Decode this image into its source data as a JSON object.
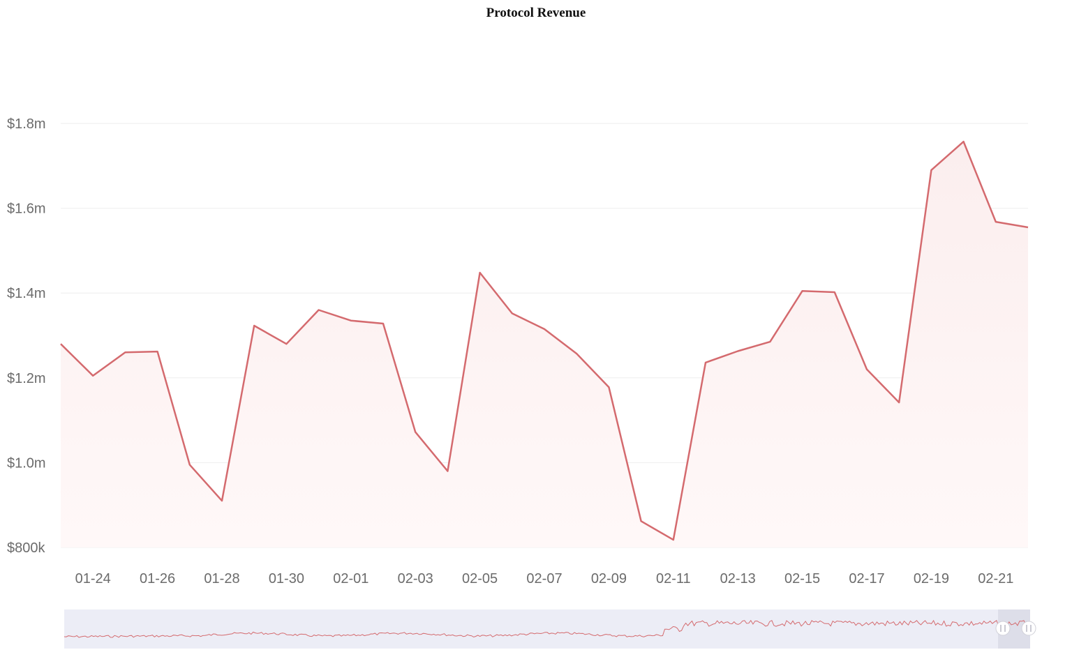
{
  "chart_data": {
    "type": "area",
    "title": "Protocol Revenue",
    "xlabel": "",
    "ylabel": "",
    "ylim": [
      800000,
      1800000
    ],
    "y_ticks": [
      {
        "value": 800000,
        "label": "$800k"
      },
      {
        "value": 1000000,
        "label": "$1.0m"
      },
      {
        "value": 1200000,
        "label": "$1.2m"
      },
      {
        "value": 1400000,
        "label": "$1.4m"
      },
      {
        "value": 1600000,
        "label": "$1.6m"
      },
      {
        "value": 1800000,
        "label": "$1.8m"
      }
    ],
    "x_tick_labels": [
      "01-24",
      "01-26",
      "01-28",
      "01-30",
      "02-01",
      "02-03",
      "02-05",
      "02-07",
      "02-09",
      "02-11",
      "02-13",
      "02-15",
      "02-17",
      "02-19",
      "02-21"
    ],
    "x": [
      "01-23",
      "01-24",
      "01-25",
      "01-26",
      "01-27",
      "01-28",
      "01-29",
      "01-30",
      "01-31",
      "02-01",
      "02-02",
      "02-03",
      "02-04",
      "02-05",
      "02-06",
      "02-07",
      "02-08",
      "02-09",
      "02-10",
      "02-11",
      "02-12",
      "02-13",
      "02-14",
      "02-15",
      "02-16",
      "02-17",
      "02-18",
      "02-19",
      "02-20",
      "02-21",
      "02-22"
    ],
    "series": [
      {
        "values": [
          1280000,
          1205000,
          1260000,
          1262000,
          995000,
          910000,
          1323000,
          1280000,
          1360000,
          1335000,
          1328000,
          1072000,
          980000,
          1448000,
          1352000,
          1315000,
          1257000,
          1178000,
          862000,
          818000,
          1236000,
          1263000,
          1285000,
          1405000,
          1402000,
          1220000,
          1142000,
          1690000,
          1757000,
          1568000,
          1555000
        ]
      }
    ],
    "grid": true,
    "legend": "none",
    "colors": {
      "line": "#d46a6e",
      "fill_top": "#fbeeee",
      "fill_bottom": "#fff8f8",
      "grid": "#eeeeee",
      "navigator_bg": "#ecedf6",
      "navigator_line": "#d46a6e"
    }
  }
}
